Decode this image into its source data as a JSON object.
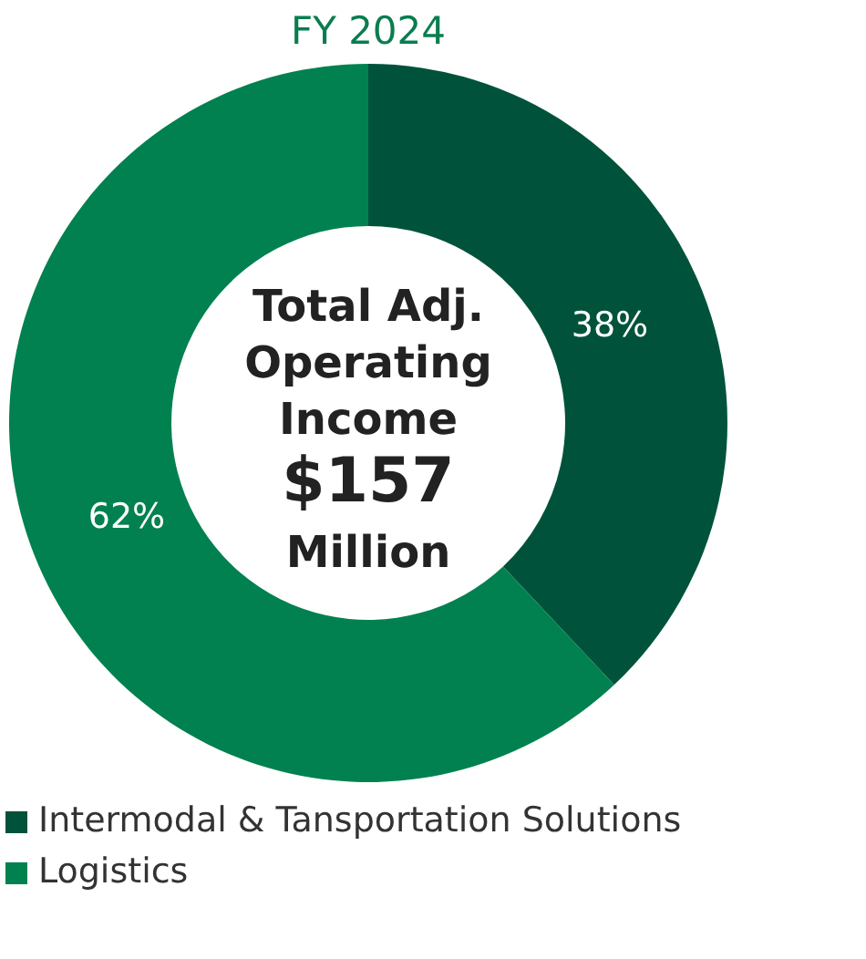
{
  "chart_data": {
    "type": "donut",
    "title": "FY 2024",
    "categories": [
      "Intermodal & Tansportation Solutions",
      "Logistics"
    ],
    "values": [
      38,
      62
    ],
    "colors": [
      "#00533a",
      "#00814f"
    ],
    "value_labels": [
      "38%",
      "62%"
    ],
    "annotations": [
      "Total Adj.",
      "Operating",
      "Income",
      "$157",
      "Million"
    ],
    "legend": "bottom"
  }
}
